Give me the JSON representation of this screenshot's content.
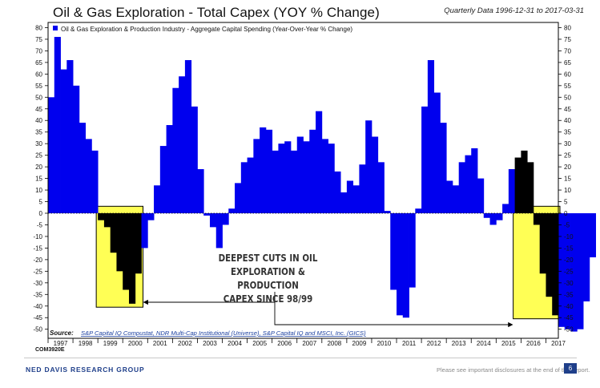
{
  "header": {
    "title": "Oil & Gas Exploration - Total Capex (YOY % Change)",
    "subtitle": "Quarterly Data 1996-12-31 to 2017-03-31"
  },
  "annotation": {
    "line1": "DEEPEST CUTS IN OIL",
    "line2": "EXPLORATION & PRODUCTION",
    "line3": "CAPEX SINCE 98/99"
  },
  "source": {
    "label": "Source:",
    "text": "S&P Capital IQ Compustat, NDR Multi-Cap Institutional (Universe), S&P Capital IQ and MSCI, Inc. (GICS)"
  },
  "footer": {
    "code": "COM3920E",
    "brand": "NED DAVIS RESEARCH GROUP",
    "disclaimer": "Please see important disclosures at the end of this report.",
    "page": "6"
  },
  "colors": {
    "series": "#0000ee",
    "highlight_bars": "#000000",
    "highlight_box": "#ffff55",
    "axis": "#000000"
  },
  "chart_data": {
    "type": "bar",
    "legend": "Oil & Gas Exploration & Production Industry - Aggregate Capital Spending (Year-Over-Year % Change)",
    "legend_position": "top-left",
    "ylim": [
      -52,
      82
    ],
    "yticks": [
      80,
      75,
      70,
      65,
      60,
      55,
      50,
      45,
      40,
      35,
      30,
      25,
      20,
      15,
      10,
      5,
      0,
      -5,
      -10,
      -15,
      -20,
      -25,
      -30,
      -35,
      -40,
      -45,
      -50
    ],
    "x_start": 1997,
    "x_end": 2017.5,
    "xticks": [
      "1997",
      "1998",
      "1999",
      "2000",
      "2001",
      "2002",
      "2003",
      "2004",
      "2005",
      "2006",
      "2007",
      "2008",
      "2009",
      "2010",
      "2011",
      "2012",
      "2013",
      "2014",
      "2015",
      "2016",
      "2017"
    ],
    "grid": false,
    "highlight_ranges": [
      [
        1999.0,
        2000.75
      ],
      [
        2015.75,
        2017.5
      ]
    ],
    "series": [
      {
        "start": 1997,
        "step": 0.25,
        "values": [
          50,
          76,
          62,
          66,
          55,
          39,
          32,
          27,
          -3,
          -6,
          -17,
          -25,
          -33,
          -39,
          -26,
          -15,
          -3,
          12,
          29,
          38,
          54,
          59,
          66,
          46,
          19,
          -1,
          -6,
          -15,
          -5,
          2,
          13,
          22,
          24,
          32,
          37,
          36,
          27,
          30,
          31,
          27,
          33,
          31,
          36,
          44,
          32,
          30,
          18,
          9,
          14,
          12,
          21,
          40,
          33,
          22,
          1,
          -33,
          -44,
          -45,
          -32,
          2,
          46,
          66,
          52,
          39,
          14,
          12,
          22,
          25,
          28,
          15,
          -2,
          -5,
          -3,
          4,
          19,
          24,
          27,
          22,
          -5,
          -26,
          -36,
          -44,
          -49,
          -50,
          -51,
          -50,
          -38,
          -19
        ]
      }
    ]
  }
}
